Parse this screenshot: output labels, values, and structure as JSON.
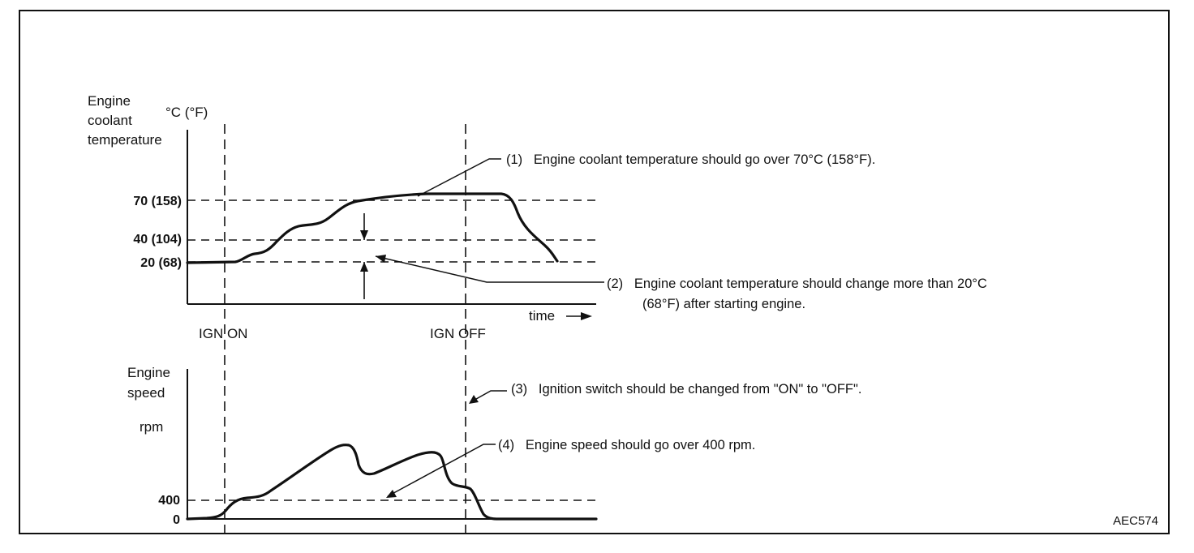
{
  "figure_code": "AEC574",
  "temperature_chart": {
    "ylabel_lines": [
      "Engine",
      "coolant",
      "temperature"
    ],
    "unit": "°C (°F)",
    "ticks": [
      {
        "id": "t70",
        "label": "70 (158)"
      },
      {
        "id": "t40",
        "label": "40 (104)"
      },
      {
        "id": "t20",
        "label": "20 (68)"
      }
    ],
    "xlabel": "time",
    "markers": {
      "ign_on": "IGN ON",
      "ign_off": "IGN OFF"
    }
  },
  "speed_chart": {
    "ylabel_lines": [
      "Engine",
      "speed"
    ],
    "unit": "rpm",
    "ticks": [
      {
        "id": "s400",
        "label": "400"
      },
      {
        "id": "s0",
        "label": "0"
      }
    ]
  },
  "annotations": [
    {
      "id": "n1",
      "lines": [
        "(1)   Engine coolant temperature should go over 70°C (158°F)."
      ]
    },
    {
      "id": "n2",
      "lines": [
        "(2)   Engine coolant temperature should change more than 20°C",
        "(68°F) after starting engine."
      ]
    },
    {
      "id": "n3",
      "lines": [
        "(3)   Ignition switch should be changed from \"ON\" to \"OFF\"."
      ]
    },
    {
      "id": "n4",
      "lines": [
        "(4)   Engine speed should go over 400 rpm."
      ]
    }
  ],
  "colors": {
    "ink": "#111111",
    "background": "#ffffff"
  }
}
